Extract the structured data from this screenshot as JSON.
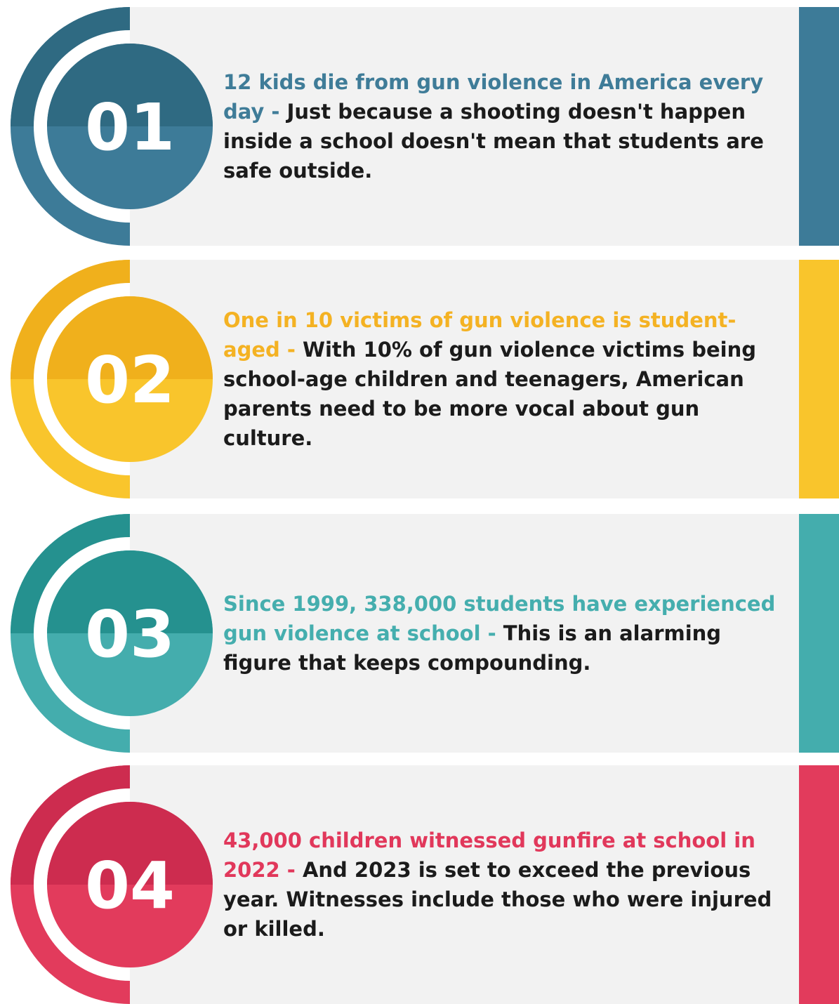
{
  "items": [
    {
      "number": "01",
      "headline": "12 kids die from gun violence in America every day -",
      "body": "Just because a shooting doesn't happen inside a school doesn't mean that students are safe outside."
    },
    {
      "number": "02",
      "headline": "One in 10 victims of gun violence is student-aged -",
      "body": "With 10% of gun violence victims being school-age children and teenagers, American parents need to be more vocal about gun culture."
    },
    {
      "number": "03",
      "headline": "Since 1999, 338,000 students have experienced gun violence at school -",
      "body": "This is an alarming figure that keeps compounding."
    },
    {
      "number": "04",
      "headline": "43,000 children witnessed gunfire at school in 2022 -",
      "body": "And 2023 is set to exceed the previous year. Witnesses include those who were injured or killed."
    }
  ]
}
